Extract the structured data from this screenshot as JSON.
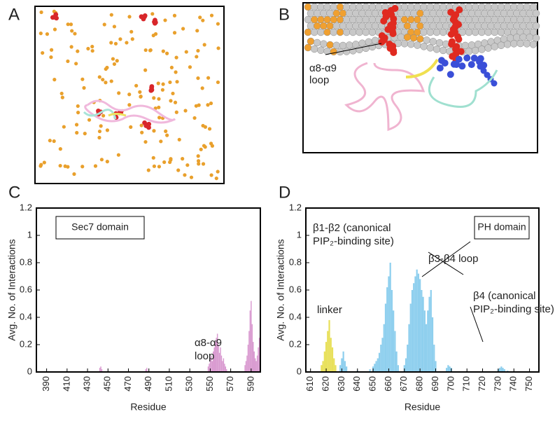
{
  "figure": {
    "panel_labels": [
      "A",
      "B",
      "C",
      "D"
    ],
    "panel_b_annotation": [
      "α8-α9",
      "loop"
    ]
  },
  "chart_data": [
    {
      "type": "bar",
      "xlabel": "Residue",
      "ylabel": "Avg. No. of Interactions",
      "domain_label": "Sec7 domain",
      "annotations": [
        [
          "α8-α9",
          "loop"
        ]
      ],
      "xlim": [
        380,
        599
      ],
      "xticks": [
        390,
        410,
        430,
        450,
        470,
        490,
        510,
        530,
        550,
        570,
        590
      ],
      "ylim": [
        0,
        1.2
      ],
      "yticks": [
        0,
        0.2,
        0.4,
        0.6,
        0.8,
        1,
        1.2
      ],
      "series": [
        {
          "color": "#d99ad0",
          "x": [
            442,
            443,
            444,
            487,
            488,
            548,
            549,
            550,
            551,
            552,
            553,
            554,
            555,
            556,
            557,
            558,
            559,
            560,
            561,
            562,
            563,
            564,
            565,
            566,
            584,
            585,
            586,
            587,
            588,
            589,
            590,
            591,
            592,
            593,
            594,
            595,
            596,
            597,
            598
          ],
          "values": [
            0.03,
            0.04,
            0.02,
            0.02,
            0.03,
            0.04,
            0.06,
            0.1,
            0.12,
            0.08,
            0.15,
            0.18,
            0.22,
            0.25,
            0.28,
            0.2,
            0.14,
            0.18,
            0.12,
            0.08,
            0.1,
            0.06,
            0.04,
            0.02,
            0.05,
            0.08,
            0.12,
            0.2,
            0.3,
            0.45,
            0.52,
            0.35,
            0.22,
            0.15,
            0.1,
            0.08,
            0.12,
            0.18,
            0.25
          ]
        }
      ]
    },
    {
      "type": "bar",
      "xlabel": "Residue",
      "ylabel": "Avg. No. of Interactions",
      "domain_label": "PH domain",
      "annotations": [
        [
          "linker"
        ],
        [
          "β1-β2 (canonical",
          "PIP₂-binding site)"
        ],
        [
          "β3-β4 loop"
        ],
        [
          "β4 (canonical",
          "PIP₂-binding site)"
        ]
      ],
      "xlim": [
        607,
        756
      ],
      "xticks": [
        610,
        620,
        630,
        640,
        650,
        660,
        670,
        680,
        690,
        700,
        710,
        720,
        730,
        740,
        750
      ],
      "ylim": [
        0,
        1.2
      ],
      "yticks": [
        0,
        0.2,
        0.4,
        0.6,
        0.8,
        1,
        1.2
      ],
      "series": [
        {
          "color": "#e8e05a",
          "x": [
            617,
            618,
            619,
            620,
            621,
            622,
            623,
            624,
            625,
            626
          ],
          "values": [
            0.05,
            0.08,
            0.15,
            0.22,
            0.3,
            0.38,
            0.25,
            0.18,
            0.1,
            0.05
          ]
        },
        {
          "color": "#8ecfee",
          "x": [
            629,
            630,
            631,
            632,
            633,
            640,
            648,
            650,
            651,
            652,
            653,
            654,
            655,
            656,
            657,
            658,
            659,
            660,
            661,
            662,
            663,
            664,
            665,
            666,
            670,
            671,
            672,
            673,
            674,
            675,
            676,
            677,
            678,
            679,
            680,
            681,
            682,
            683,
            684,
            685,
            686,
            687,
            688,
            689,
            690,
            697,
            698,
            699,
            700,
            730,
            731,
            732,
            733,
            734,
            736
          ],
          "values": [
            0.05,
            0.1,
            0.15,
            0.08,
            0.04,
            0.01,
            0.02,
            0.04,
            0.06,
            0.08,
            0.1,
            0.14,
            0.2,
            0.25,
            0.35,
            0.5,
            0.62,
            0.7,
            0.8,
            0.6,
            0.45,
            0.3,
            0.15,
            0.05,
            0.05,
            0.1,
            0.2,
            0.35,
            0.5,
            0.6,
            0.65,
            0.7,
            0.75,
            0.72,
            0.68,
            0.6,
            0.55,
            0.45,
            0.35,
            0.45,
            0.55,
            0.6,
            0.4,
            0.2,
            0.08,
            0.03,
            0.05,
            0.04,
            0.03,
            0.02,
            0.03,
            0.04,
            0.03,
            0.02,
            0.01
          ]
        }
      ]
    }
  ]
}
